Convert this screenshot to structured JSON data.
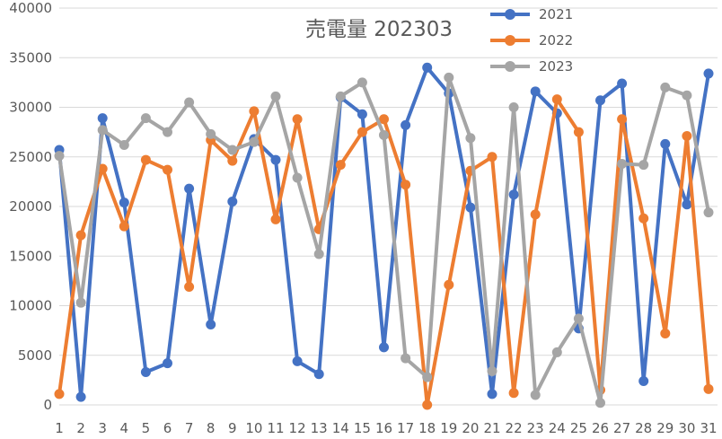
{
  "chart_data": {
    "type": "line",
    "title": "売電量 202303",
    "xlabel": "",
    "ylabel": "",
    "ylim": [
      0,
      40000
    ],
    "yticks": [
      0,
      5000,
      10000,
      15000,
      20000,
      25000,
      30000,
      35000,
      40000
    ],
    "grid": true,
    "legend": "top-right",
    "categories": [
      "1",
      "2",
      "3",
      "4",
      "5",
      "6",
      "7",
      "8",
      "9",
      "10",
      "11",
      "12",
      "13",
      "14",
      "15",
      "16",
      "17",
      "18",
      "19",
      "20",
      "21",
      "22",
      "23",
      "24",
      "25",
      "26",
      "27",
      "28",
      "29",
      "30",
      "31"
    ],
    "series": [
      {
        "name": "2021",
        "color": "#4472c4",
        "values": [
          25700,
          800,
          28900,
          20400,
          3300,
          4200,
          21800,
          8100,
          20500,
          26800,
          24700,
          4400,
          3100,
          31000,
          29300,
          5800,
          28200,
          34000,
          31400,
          19900,
          1100,
          21200,
          31600,
          29400,
          7700,
          30700,
          32400,
          2400,
          26300,
          20200,
          33400
        ]
      },
      {
        "name": "2022",
        "color": "#ed7d31",
        "values": [
          1100,
          17100,
          23800,
          18000,
          24700,
          23700,
          11900,
          26700,
          24600,
          29600,
          18700,
          28800,
          17700,
          24200,
          27500,
          28800,
          22200,
          0,
          12100,
          23600,
          25000,
          1200,
          19200,
          30800,
          27500,
          1500,
          28800,
          18800,
          7200,
          27100,
          1600
        ]
      },
      {
        "name": "2023",
        "color": "#a5a5a5",
        "values": [
          25100,
          10300,
          27700,
          26200,
          28900,
          27500,
          30500,
          27300,
          25700,
          26500,
          31100,
          22900,
          15200,
          31100,
          32500,
          27200,
          4700,
          2800,
          33000,
          26900,
          3400,
          30000,
          1000,
          5300,
          8700,
          200,
          24300,
          24200,
          32000,
          31200,
          19400
        ]
      }
    ]
  }
}
